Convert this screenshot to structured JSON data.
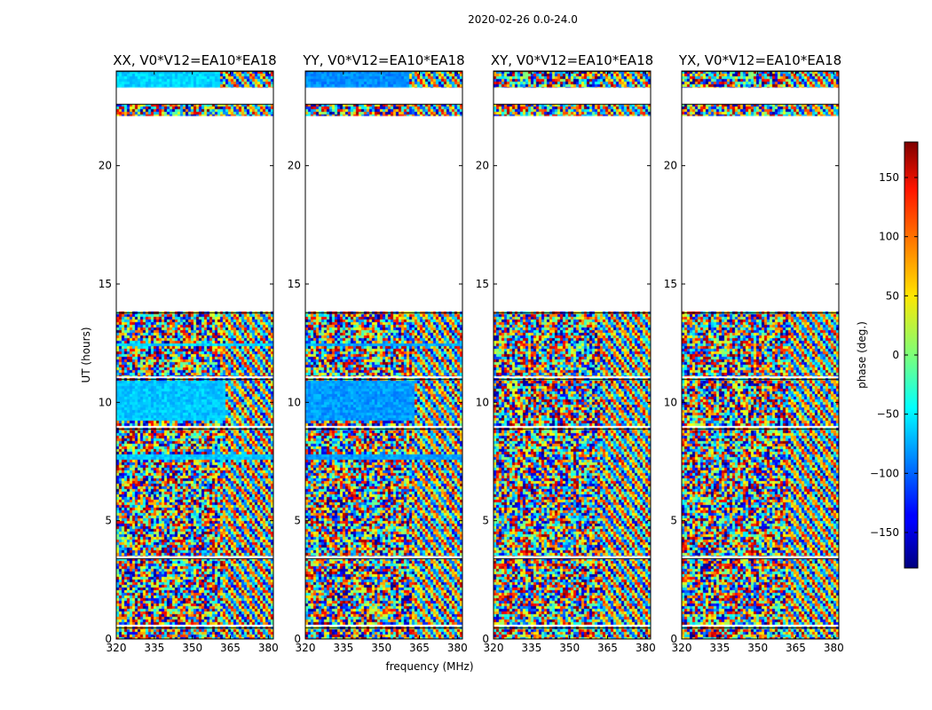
{
  "figure_title": "2020-02-26 0.0-24.0",
  "chart_data": {
    "type": "heatmap",
    "suptitle": "2020-02-26 0.0-24.0",
    "xlabel": "frequency (MHz)",
    "ylabel": "UT (hours)",
    "xlim": [
      320,
      382
    ],
    "ylim": [
      0,
      24
    ],
    "xticks": [
      320,
      335,
      350,
      365,
      380
    ],
    "yticks": [
      0,
      5,
      10,
      15,
      20
    ],
    "panels": [
      {
        "title": "XX, V0*V12=EA10*EA18",
        "polarization": "XX"
      },
      {
        "title": "YY, V0*V12=EA10*EA18",
        "polarization": "YY"
      },
      {
        "title": "XY, V0*V12=EA10*EA18",
        "polarization": "XY"
      },
      {
        "title": "YX, V0*V12=EA10*EA18",
        "polarization": "YX"
      }
    ],
    "colorbar": {
      "label": "phase (deg.)",
      "range": [
        -180,
        180
      ],
      "ticks": [
        -150,
        -100,
        -50,
        0,
        50,
        100,
        150
      ],
      "colormap": "jet"
    },
    "data_time_ranges_hours": [
      [
        0.0,
        0.5
      ],
      [
        0.6,
        3.4
      ],
      [
        3.5,
        8.9
      ],
      [
        9.0,
        11.0
      ],
      [
        11.1,
        13.8
      ],
      [
        22.1,
        22.6
      ],
      [
        23.3,
        24.0
      ]
    ],
    "coherent_blocks": [
      {
        "panel": "XX",
        "t": [
          9.3,
          11.0
        ],
        "f": [
          320,
          363
        ],
        "phase_deg": -65
      },
      {
        "panel": "XX",
        "t": [
          7.6,
          7.8
        ],
        "f": [
          320,
          382
        ],
        "phase_deg": -65
      },
      {
        "panel": "XX",
        "t": [
          12.4,
          12.6
        ],
        "f": [
          320,
          382
        ],
        "phase_deg": -60
      },
      {
        "panel": "XX",
        "t": [
          23.3,
          24.0
        ],
        "f": [
          320,
          360
        ],
        "phase_deg": -60
      },
      {
        "panel": "YY",
        "t": [
          9.3,
          11.0
        ],
        "f": [
          320,
          363
        ],
        "phase_deg": -80
      },
      {
        "panel": "YY",
        "t": [
          7.6,
          7.8
        ],
        "f": [
          320,
          382
        ],
        "phase_deg": -80
      },
      {
        "panel": "YY",
        "t": [
          12.4,
          12.6
        ],
        "f": [
          320,
          382
        ],
        "phase_deg": -75
      },
      {
        "panel": "YY",
        "t": [
          23.3,
          24.0
        ],
        "f": [
          320,
          360
        ],
        "phase_deg": -85
      }
    ],
    "xtick_labels": [
      "320",
      "335",
      "350",
      "365",
      "380"
    ],
    "ytick_labels": [
      "0",
      "5",
      "10",
      "15",
      "20"
    ],
    "colorbar_tick_labels": [
      "−150",
      "−100",
      "−50",
      "0",
      "50",
      "100",
      "150"
    ]
  }
}
